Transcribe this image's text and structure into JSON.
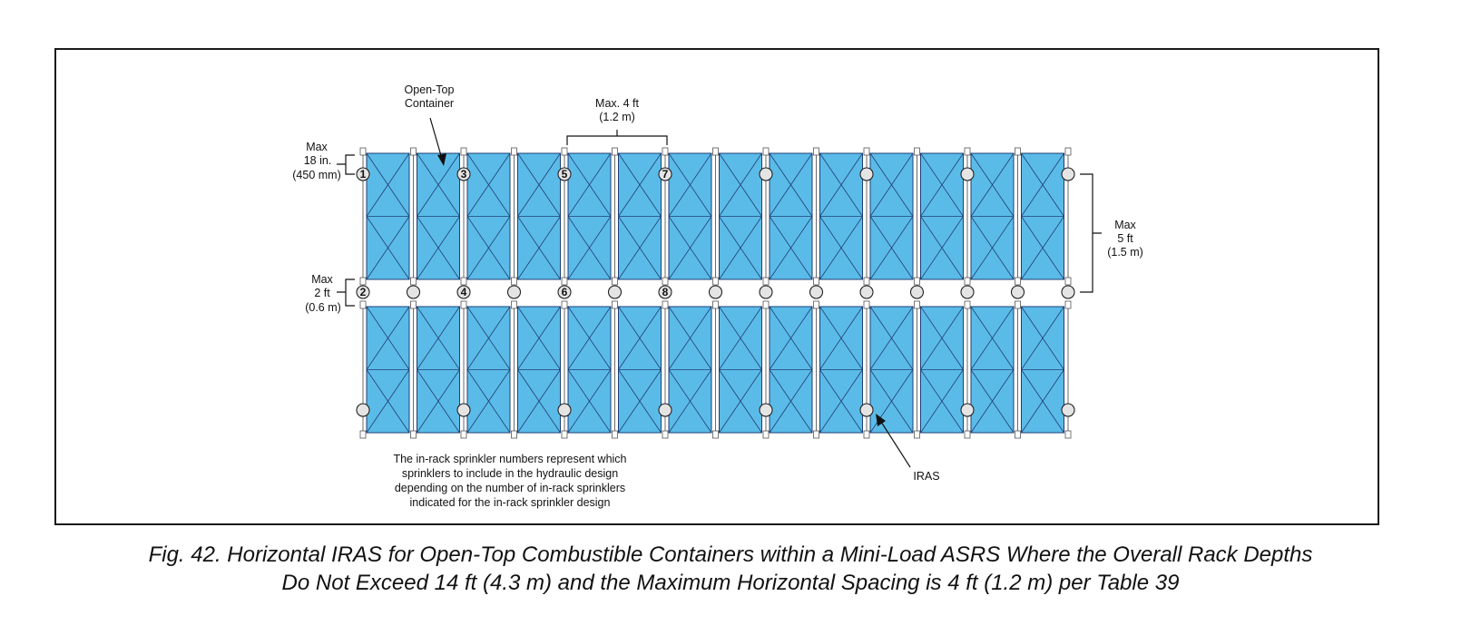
{
  "diagram": {
    "open_top_label": [
      "Open-Top",
      "Container"
    ],
    "max_spacing_label": [
      "Max. 4 ft",
      "(1.2 m)"
    ],
    "max_clearance_label": [
      "Max",
      "18 in.",
      "(450 mm)"
    ],
    "max_flue_label": [
      "Max",
      "2 ft",
      "(0.6 m)"
    ],
    "max_depth_label": [
      "Max",
      "5 ft",
      "(1.5 m)"
    ],
    "iras_label": "IRAS",
    "note_lines": [
      "The in-rack sprinkler numbers represent which",
      "sprinklers to include in the hydraulic design",
      "depending on the number of in-rack sprinklers",
      "indicated for the in-rack sprinkler design"
    ],
    "container_columns": 14,
    "container_color": "#5bbbe8",
    "top_row_numbers": [
      {
        "col": 0,
        "label": "1"
      },
      {
        "col": 2,
        "label": "3"
      },
      {
        "col": 4,
        "label": "5"
      },
      {
        "col": 6,
        "label": "7"
      }
    ],
    "middle_row_numbers": [
      {
        "col": 0,
        "label": "2"
      },
      {
        "col": 2,
        "label": "4"
      },
      {
        "col": 4,
        "label": "6"
      },
      {
        "col": 6,
        "label": "8"
      }
    ]
  },
  "caption": {
    "line1": "Fig. 42. Horizontal IRAS for Open-Top Combustible Containers within a Mini-Load ASRS Where the Overall Rack Depths",
    "line2": "Do Not Exceed 14 ft (4.3 m) and the Maximum Horizontal Spacing is 4 ft (1.2 m) per Table 39"
  }
}
